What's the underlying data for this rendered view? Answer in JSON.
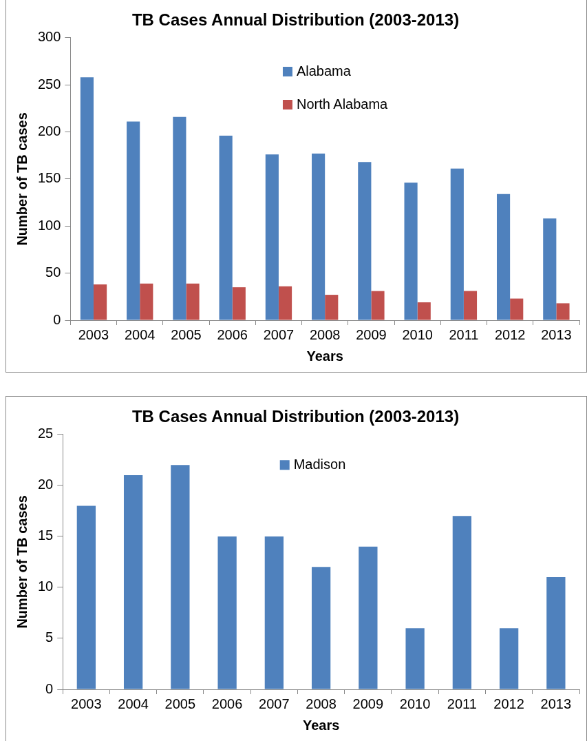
{
  "chart_data": [
    {
      "type": "bar",
      "title": "TB Cases Annual Distribution (2003-2013)",
      "xlabel": "Years",
      "ylabel": "Number of TB cases",
      "categories": [
        "2003",
        "2004",
        "2005",
        "2006",
        "2007",
        "2008",
        "2009",
        "2010",
        "2011",
        "2012",
        "2013"
      ],
      "series": [
        {
          "name": "Alabama",
          "color": "#4f81bd",
          "values": [
            258,
            211,
            216,
            196,
            176,
            177,
            168,
            146,
            161,
            134,
            108
          ]
        },
        {
          "name": "North Alabama",
          "color": "#c0504d",
          "values": [
            38,
            39,
            39,
            35,
            36,
            27,
            31,
            19,
            31,
            23,
            18
          ]
        }
      ],
      "ylim": [
        0,
        300
      ],
      "yticks": [
        0,
        50,
        100,
        150,
        200,
        250,
        300
      ],
      "grid": false,
      "legend": "top"
    },
    {
      "type": "bar",
      "title": "TB Cases Annual Distribution (2003-2013)",
      "xlabel": "Years",
      "ylabel": "Number of TB cases",
      "categories": [
        "2003",
        "2004",
        "2005",
        "2006",
        "2007",
        "2008",
        "2009",
        "2010",
        "2011",
        "2012",
        "2013"
      ],
      "series": [
        {
          "name": "Madison",
          "color": "#4f81bd",
          "values": [
            18,
            21,
            22,
            15,
            15,
            12,
            14,
            6,
            17,
            6,
            11
          ]
        }
      ],
      "ylim": [
        0,
        25
      ],
      "yticks": [
        0,
        5,
        10,
        15,
        20,
        25
      ],
      "grid": false,
      "legend": "top"
    }
  ]
}
